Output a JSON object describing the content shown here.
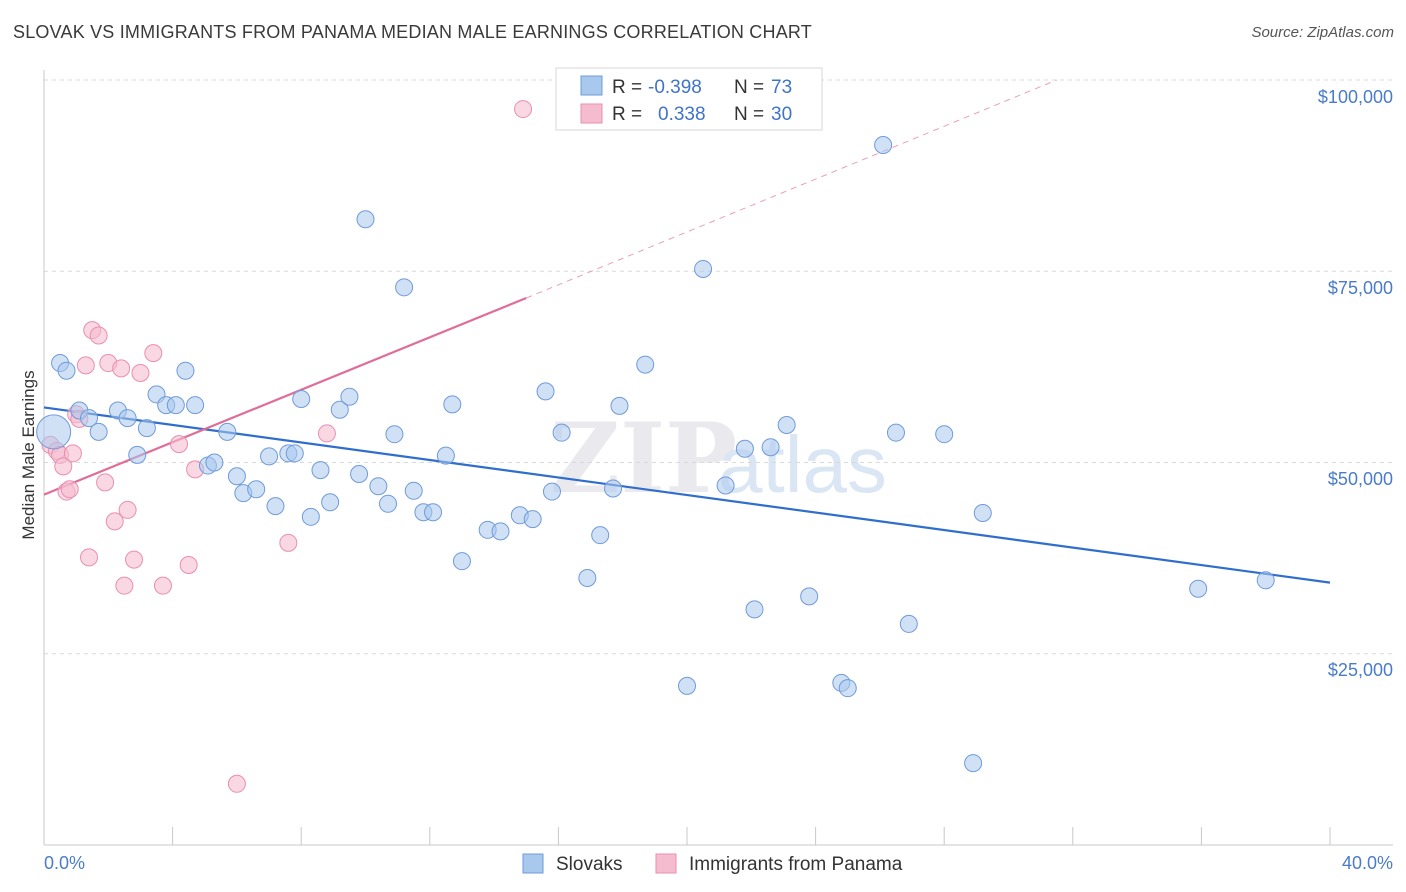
{
  "title": "SLOVAK VS IMMIGRANTS FROM PANAMA MEDIAN MALE EARNINGS CORRELATION CHART",
  "source": "Source: ZipAtlas.com",
  "watermark": {
    "zip": "ZIP",
    "atlas": "atlas"
  },
  "colors": {
    "blue_fill": "#a9c8ee",
    "blue_stroke": "#6f9bd8",
    "blue_line": "#2f6ecc",
    "pink_fill": "#f5bcd0",
    "pink_stroke": "#e98fb0",
    "pink_line": "#e06d98",
    "grid": "#d9d9d9",
    "tick_text": "#4a7cc9"
  },
  "legend": {
    "rows": [
      {
        "r_label": "R =",
        "r_value": "-0.398",
        "n_label": "N =",
        "n_value": "73"
      },
      {
        "r_label": "R =",
        "r_value": "0.338",
        "n_label": "N =",
        "n_value": "30"
      }
    ]
  },
  "chart_data": {
    "type": "scatter",
    "title": "SLOVAK VS IMMIGRANTS FROM PANAMA MEDIAN MALE EARNINGS CORRELATION CHART",
    "xlabel": "",
    "ylabel": "Median Male Earnings",
    "xlim": [
      0,
      40
    ],
    "ylim": [
      0,
      102000
    ],
    "x_tick_labels": [
      "0.0%",
      "40.0%"
    ],
    "y_ticks": [
      25000,
      50000,
      75000,
      100000
    ],
    "y_tick_labels": [
      "$25,000",
      "$50,000",
      "$75,000",
      "$100,000"
    ],
    "grid": true,
    "legend_position": "bottom-center",
    "series": [
      {
        "name": "Slovaks",
        "color": "#a9c8ee",
        "trend": {
          "x": [
            0,
            40
          ],
          "y": [
            57200,
            34300
          ],
          "style": "solid"
        },
        "points": [
          [
            0.3,
            54000
          ],
          [
            0.5,
            63000
          ],
          [
            0.7,
            62000
          ],
          [
            1.1,
            56800
          ],
          [
            1.4,
            55800
          ],
          [
            1.7,
            54000
          ],
          [
            2.3,
            56800
          ],
          [
            2.6,
            55800
          ],
          [
            2.9,
            51000
          ],
          [
            3.2,
            54500
          ],
          [
            3.5,
            58900
          ],
          [
            3.8,
            57500
          ],
          [
            4.1,
            57500
          ],
          [
            4.4,
            62000
          ],
          [
            4.7,
            57500
          ],
          [
            5.1,
            49600
          ],
          [
            5.3,
            50000
          ],
          [
            5.7,
            54000
          ],
          [
            6.0,
            48200
          ],
          [
            6.2,
            46000
          ],
          [
            6.6,
            46500
          ],
          [
            7.0,
            50800
          ],
          [
            7.2,
            44300
          ],
          [
            7.6,
            51200
          ],
          [
            7.8,
            51200
          ],
          [
            8.0,
            58300
          ],
          [
            8.3,
            42900
          ],
          [
            8.6,
            49000
          ],
          [
            8.9,
            44800
          ],
          [
            9.2,
            56900
          ],
          [
            9.5,
            58600
          ],
          [
            9.8,
            48500
          ],
          [
            10.0,
            81800
          ],
          [
            10.4,
            46900
          ],
          [
            10.7,
            44600
          ],
          [
            10.9,
            53700
          ],
          [
            11.2,
            72900
          ],
          [
            11.5,
            46300
          ],
          [
            11.8,
            43500
          ],
          [
            12.1,
            43500
          ],
          [
            12.5,
            50900
          ],
          [
            12.7,
            57600
          ],
          [
            13.0,
            37100
          ],
          [
            13.8,
            41200
          ],
          [
            14.2,
            41000
          ],
          [
            14.8,
            43100
          ],
          [
            15.2,
            42600
          ],
          [
            15.6,
            59300
          ],
          [
            15.8,
            46200
          ],
          [
            16.1,
            53900
          ],
          [
            16.9,
            34900
          ],
          [
            17.3,
            40500
          ],
          [
            17.7,
            46600
          ],
          [
            17.9,
            57400
          ],
          [
            18.7,
            62800
          ],
          [
            20.0,
            20800
          ],
          [
            20.5,
            75300
          ],
          [
            21.2,
            47000
          ],
          [
            21.8,
            51800
          ],
          [
            22.1,
            30800
          ],
          [
            22.6,
            52000
          ],
          [
            23.1,
            54900
          ],
          [
            23.8,
            32500
          ],
          [
            24.8,
            21200
          ],
          [
            25.0,
            20500
          ],
          [
            26.1,
            91500
          ],
          [
            26.5,
            53900
          ],
          [
            26.9,
            28900
          ],
          [
            28.0,
            53700
          ],
          [
            28.9,
            10700
          ],
          [
            29.2,
            43400
          ],
          [
            35.9,
            33500
          ],
          [
            38.0,
            34600
          ]
        ]
      },
      {
        "name": "Immigrants from Panama",
        "color": "#f5bcd0",
        "trend": {
          "x": [
            0,
            15
          ],
          "y": [
            45800,
            71500
          ],
          "style": "solid",
          "extended": {
            "x": [
              15,
              31.5
            ],
            "y": [
              71500,
              100000
            ],
            "style": "dashed"
          }
        },
        "points": [
          [
            0.2,
            52300
          ],
          [
            0.4,
            51500
          ],
          [
            0.5,
            51000
          ],
          [
            0.6,
            49500
          ],
          [
            0.7,
            46200
          ],
          [
            0.8,
            46500
          ],
          [
            1.0,
            56300
          ],
          [
            1.1,
            55700
          ],
          [
            1.3,
            62700
          ],
          [
            1.5,
            67300
          ],
          [
            1.7,
            66600
          ],
          [
            1.9,
            47400
          ],
          [
            2.0,
            63000
          ],
          [
            2.2,
            42300
          ],
          [
            2.4,
            62300
          ],
          [
            2.6,
            43800
          ],
          [
            2.8,
            37300
          ],
          [
            3.0,
            61700
          ],
          [
            3.4,
            64300
          ],
          [
            3.7,
            33900
          ],
          [
            4.2,
            52400
          ],
          [
            4.5,
            36600
          ],
          [
            4.7,
            49100
          ],
          [
            6.0,
            8000
          ],
          [
            1.4,
            37600
          ],
          [
            2.5,
            33900
          ],
          [
            7.6,
            39500
          ],
          [
            8.8,
            53800
          ],
          [
            14.9,
            96200
          ],
          [
            0.9,
            51200
          ]
        ]
      }
    ]
  },
  "bottom_legend": {
    "items": [
      "Slovaks",
      "Immigrants from Panama"
    ]
  }
}
